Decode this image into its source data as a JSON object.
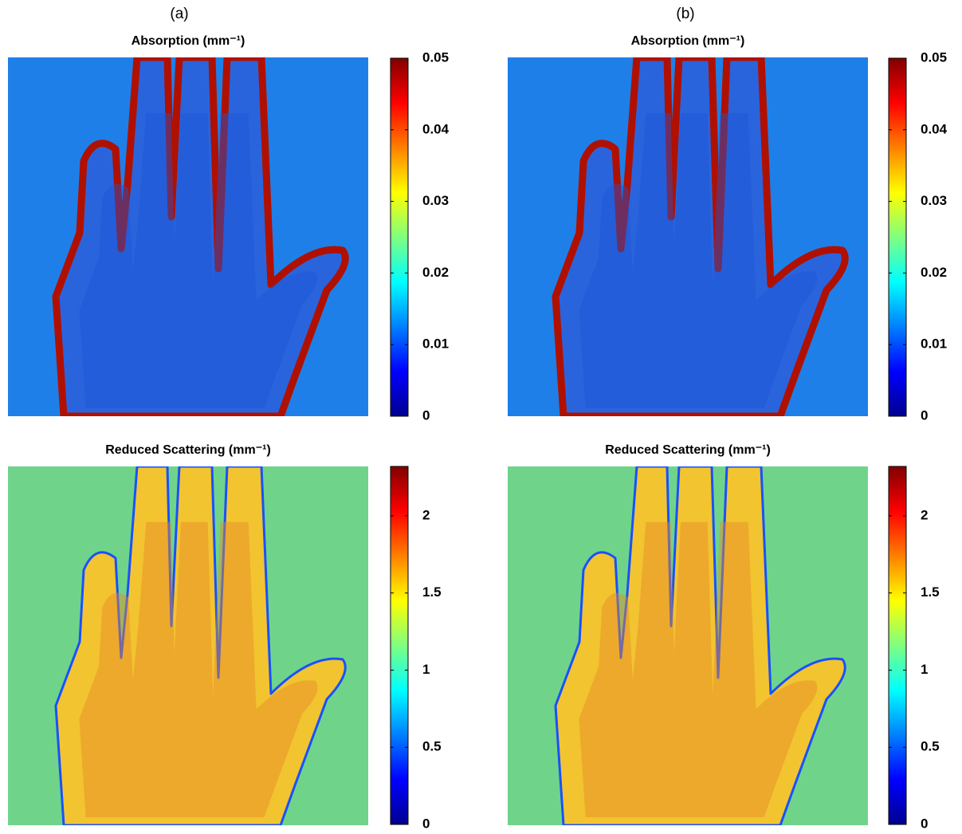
{
  "chart_data": [
    {
      "type": "heatmap",
      "label": "(a)",
      "title": "Absorption (mm⁻¹)",
      "colormap": "jet",
      "clim": [
        0,
        0.05
      ],
      "cticks": [
        0,
        0.01,
        0.02,
        0.03,
        0.04,
        0.05
      ]
    },
    {
      "type": "heatmap",
      "label": "(b)",
      "title": "Absorption (mm⁻¹)",
      "colormap": "jet",
      "clim": [
        0,
        0.05
      ],
      "cticks": [
        0,
        0.01,
        0.02,
        0.03,
        0.04,
        0.05
      ]
    },
    {
      "type": "heatmap",
      "title": "Reduced Scattering (mm⁻¹)",
      "colormap": "jet",
      "clim": [
        0,
        2.32
      ],
      "cticks": [
        0,
        0.5,
        1,
        1.5,
        2
      ]
    },
    {
      "type": "heatmap",
      "title": "Reduced Scattering (mm⁻¹)",
      "colormap": "jet",
      "clim": [
        0,
        2.32
      ],
      "cticks": [
        0,
        0.5,
        1,
        1.5,
        2
      ]
    }
  ]
}
